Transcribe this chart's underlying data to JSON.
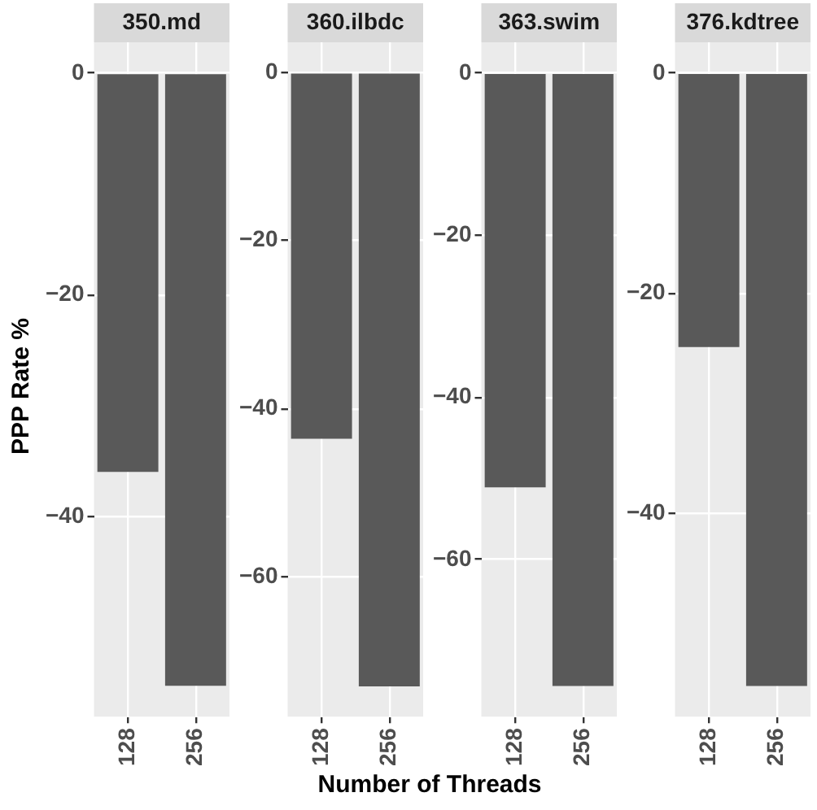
{
  "chart_data": [
    {
      "type": "bar",
      "title": "350.md",
      "ylabel": "PPP Rate %",
      "xlabel": "Number of Threads",
      "categories": [
        "128",
        "256"
      ],
      "values": [
        -36,
        -55.3
      ],
      "color": "#595959",
      "ylim": [
        -58.1,
        2.8
      ],
      "yticks": [
        0,
        -20,
        -40
      ],
      "grid": true,
      "legend": false
    },
    {
      "type": "bar",
      "title": "360.ilbdc",
      "categories": [
        "128",
        "256"
      ],
      "values": [
        -43.6,
        -73.1
      ],
      "color": "#595959",
      "ylim": [
        -76.7,
        3.6
      ],
      "yticks": [
        0,
        -20,
        -40,
        -60
      ],
      "grid": true,
      "legend": false
    },
    {
      "type": "bar",
      "title": "363.swim",
      "categories": [
        "128",
        "256"
      ],
      "values": [
        -51.1,
        -75.6
      ],
      "color": "#595959",
      "ylim": [
        -79.4,
        3.8
      ],
      "yticks": [
        0,
        -20,
        -40,
        -60
      ],
      "grid": true,
      "legend": false
    },
    {
      "type": "bar",
      "title": "376.kdtree",
      "categories": [
        "128",
        "256"
      ],
      "values": [
        -24.9,
        -55.7
      ],
      "color": "#595959",
      "ylim": [
        -58.5,
        2.8
      ],
      "yticks": [
        0,
        -20,
        -40
      ],
      "grid": true,
      "legend": false
    }
  ]
}
